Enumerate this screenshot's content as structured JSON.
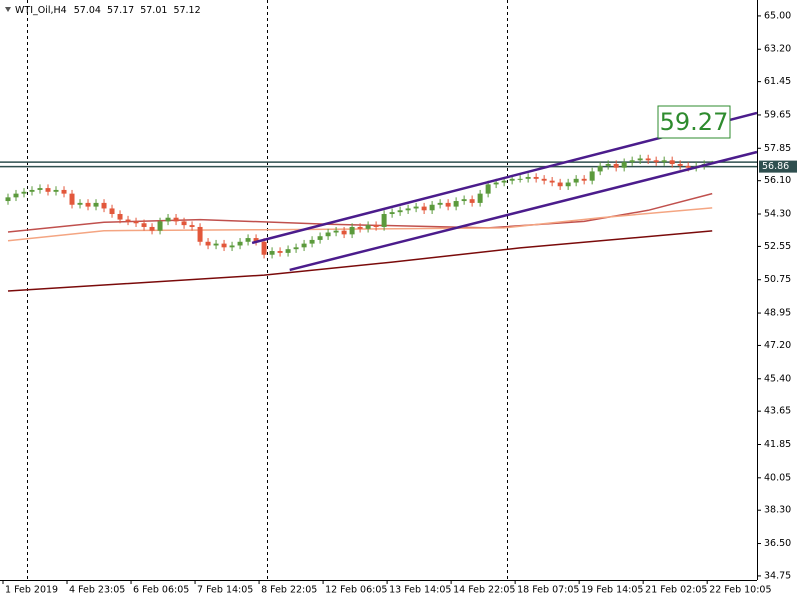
{
  "chart_data": {
    "type": "candlestick",
    "symbol": "WTI_Oil,H4",
    "categories": [
      "1 Feb 2019",
      null,
      null,
      null,
      null,
      null,
      null,
      null,
      "4 Feb 23:05",
      null,
      null,
      null,
      null,
      null,
      null,
      null,
      "6 Feb 06:05",
      null,
      null,
      null,
      null,
      null,
      null,
      null,
      "7 Feb 14:05",
      null,
      null,
      null,
      null,
      null,
      null,
      null,
      "8 Feb 22:05",
      null,
      null,
      null,
      null,
      null,
      null,
      null,
      "12 Feb 06:05",
      null,
      null,
      null,
      null,
      null,
      null,
      null,
      "13 Feb 14:05",
      null,
      null,
      null,
      null,
      null,
      null,
      null,
      "14 Feb 22:05",
      null,
      null,
      null,
      null,
      null,
      null,
      null,
      "18 Feb 07:05",
      null,
      null,
      null,
      null,
      null,
      null,
      null,
      "19 Feb 14:05",
      null,
      null,
      null,
      null,
      null,
      null,
      null,
      "21 Feb 02:05",
      null,
      null,
      null,
      null,
      null,
      null,
      null,
      "22 Feb 10:05"
    ],
    "open": [
      55.0,
      55.2,
      55.4,
      55.5,
      55.6,
      55.7,
      55.5,
      55.6,
      55.4,
      54.8,
      54.9,
      54.7,
      54.9,
      54.6,
      54.3,
      54.0,
      53.9,
      53.8,
      53.6,
      53.4,
      53.9,
      54.1,
      53.9,
      53.7,
      53.6,
      52.8,
      52.6,
      52.7,
      52.5,
      52.6,
      52.8,
      53.0,
      52.8,
      52.1,
      52.3,
      52.2,
      52.4,
      52.5,
      52.7,
      52.9,
      53.1,
      53.3,
      53.4,
      53.2,
      53.6,
      53.5,
      53.7,
      53.6,
      54.3,
      54.4,
      54.5,
      54.6,
      54.7,
      54.5,
      54.8,
      54.9,
      54.7,
      55.0,
      55.1,
      54.9,
      55.4,
      55.9,
      56.0,
      56.1,
      56.2,
      56.2,
      56.3,
      56.2,
      56.1,
      56.0,
      55.8,
      56.0,
      56.2,
      56.1,
      56.6,
      56.9,
      57.0,
      56.8,
      57.1,
      57.2,
      57.3,
      57.2,
      57.1,
      57.2,
      57.0,
      56.9,
      56.8,
      56.9,
      57.04
    ],
    "high": [
      55.4,
      55.6,
      55.7,
      55.8,
      55.9,
      55.9,
      55.8,
      55.8,
      55.6,
      55.1,
      55.1,
      55.1,
      55.1,
      54.8,
      54.5,
      54.2,
      54.1,
      54.0,
      53.8,
      54.1,
      54.3,
      54.3,
      54.1,
      53.9,
      53.8,
      53.0,
      52.9,
      52.9,
      52.8,
      53.0,
      53.2,
      53.2,
      53.0,
      52.5,
      52.5,
      52.6,
      52.7,
      52.9,
      53.1,
      53.3,
      53.5,
      53.6,
      53.6,
      53.8,
      53.8,
      53.9,
      53.9,
      54.5,
      54.6,
      54.7,
      54.8,
      54.9,
      54.9,
      55.0,
      55.1,
      55.1,
      55.2,
      55.3,
      55.3,
      55.6,
      56.1,
      56.2,
      56.3,
      56.4,
      56.4,
      56.5,
      56.5,
      56.4,
      56.3,
      56.2,
      56.2,
      56.4,
      56.4,
      56.8,
      57.1,
      57.2,
      57.2,
      57.3,
      57.4,
      57.5,
      57.5,
      57.4,
      57.4,
      57.4,
      57.2,
      57.1,
      57.1,
      57.2,
      57.17
    ],
    "low": [
      54.8,
      55.0,
      55.2,
      55.3,
      55.4,
      55.3,
      55.3,
      55.2,
      54.6,
      54.6,
      54.5,
      54.5,
      54.4,
      54.1,
      53.8,
      53.7,
      53.6,
      53.4,
      53.2,
      53.2,
      53.7,
      53.7,
      53.5,
      53.4,
      52.6,
      52.4,
      52.4,
      52.3,
      52.3,
      52.4,
      52.6,
      52.6,
      51.9,
      51.9,
      52.0,
      52.0,
      52.2,
      52.3,
      52.5,
      52.7,
      52.9,
      53.1,
      53.0,
      53.0,
      53.3,
      53.3,
      53.4,
      53.4,
      54.1,
      54.2,
      54.3,
      54.4,
      54.3,
      54.3,
      54.6,
      54.5,
      54.5,
      54.8,
      54.7,
      54.7,
      55.2,
      55.7,
      55.8,
      55.9,
      56.0,
      56.0,
      56.0,
      55.9,
      55.8,
      55.6,
      55.6,
      55.8,
      55.9,
      55.9,
      56.4,
      56.7,
      56.6,
      56.6,
      56.9,
      57.0,
      57.0,
      56.9,
      56.9,
      56.8,
      56.7,
      56.6,
      56.6,
      56.7,
      57.01
    ],
    "close": [
      55.2,
      55.4,
      55.5,
      55.6,
      55.7,
      55.5,
      55.6,
      55.4,
      54.8,
      54.9,
      54.7,
      54.9,
      54.6,
      54.3,
      54.0,
      53.9,
      53.8,
      53.6,
      53.4,
      53.9,
      54.1,
      53.9,
      53.7,
      53.6,
      52.8,
      52.6,
      52.7,
      52.5,
      52.6,
      52.8,
      53.0,
      52.8,
      52.1,
      52.3,
      52.2,
      52.4,
      52.5,
      52.7,
      52.9,
      53.1,
      53.3,
      53.4,
      53.2,
      53.6,
      53.5,
      53.7,
      53.6,
      54.3,
      54.4,
      54.5,
      54.6,
      54.7,
      54.5,
      54.8,
      54.9,
      54.7,
      55.0,
      55.1,
      54.9,
      55.4,
      55.9,
      56.0,
      56.1,
      56.2,
      56.2,
      56.3,
      56.2,
      56.1,
      56.0,
      55.8,
      56.0,
      56.2,
      56.1,
      56.6,
      56.9,
      57.0,
      56.8,
      57.1,
      57.2,
      57.3,
      57.2,
      57.1,
      57.2,
      57.0,
      56.9,
      56.8,
      56.9,
      57.0,
      57.12
    ],
    "up_color": "#5b9a3c",
    "down_color": "#e2573b",
    "moving_averages": [
      {
        "color": "#7a0a0a",
        "x": [
          0,
          32,
          48,
          64,
          88
        ],
        "values": [
          50.14,
          51.0,
          51.7,
          52.47,
          53.39
        ]
      },
      {
        "color": "#c0504d",
        "x": [
          0,
          12,
          24,
          40,
          60,
          72,
          80,
          88
        ],
        "values": [
          53.33,
          53.85,
          54.0,
          53.75,
          53.55,
          53.9,
          54.5,
          55.4
        ]
      },
      {
        "color": "#f4a582",
        "x": [
          0,
          12,
          32,
          62,
          74,
          88
        ],
        "values": [
          52.85,
          53.4,
          53.45,
          53.55,
          54.1,
          54.63
        ]
      }
    ],
    "trendlines": [
      {
        "color": "#4b1c8c",
        "x": [
          30.5,
          93.6
        ],
        "values": [
          52.74,
          59.76
        ]
      },
      {
        "color": "#4b1c8c",
        "x": [
          35.2,
          93.6
        ],
        "values": [
          51.28,
          57.65
        ]
      }
    ],
    "hlines": [
      56.86,
      57.1
    ],
    "hline_color": "#2f4f4f",
    "target": 59.27,
    "target_color": "#2e8b2e",
    "xlim": [
      -1,
      93.6
    ],
    "ylim": [
      34.53,
      65.86
    ],
    "yticks": [
      {
        "value": 65,
        "label": "65.00"
      },
      {
        "value": 63.2,
        "label": "63.20"
      },
      61.45,
      59.65,
      57.85,
      {
        "value": 56.1,
        "label": "56.10"
      },
      {
        "value": 54.3,
        "label": "54.30"
      },
      52.55,
      50.75,
      48.95,
      {
        "value": 47.2,
        "label": "47.20"
      },
      {
        "value": 45.4,
        "label": "45.40"
      },
      43.65,
      41.85,
      40.05,
      {
        "value": 38.3,
        "label": "38.30"
      },
      {
        "value": 36.5,
        "label": "36.50"
      },
      34.75
    ]
  }
}
